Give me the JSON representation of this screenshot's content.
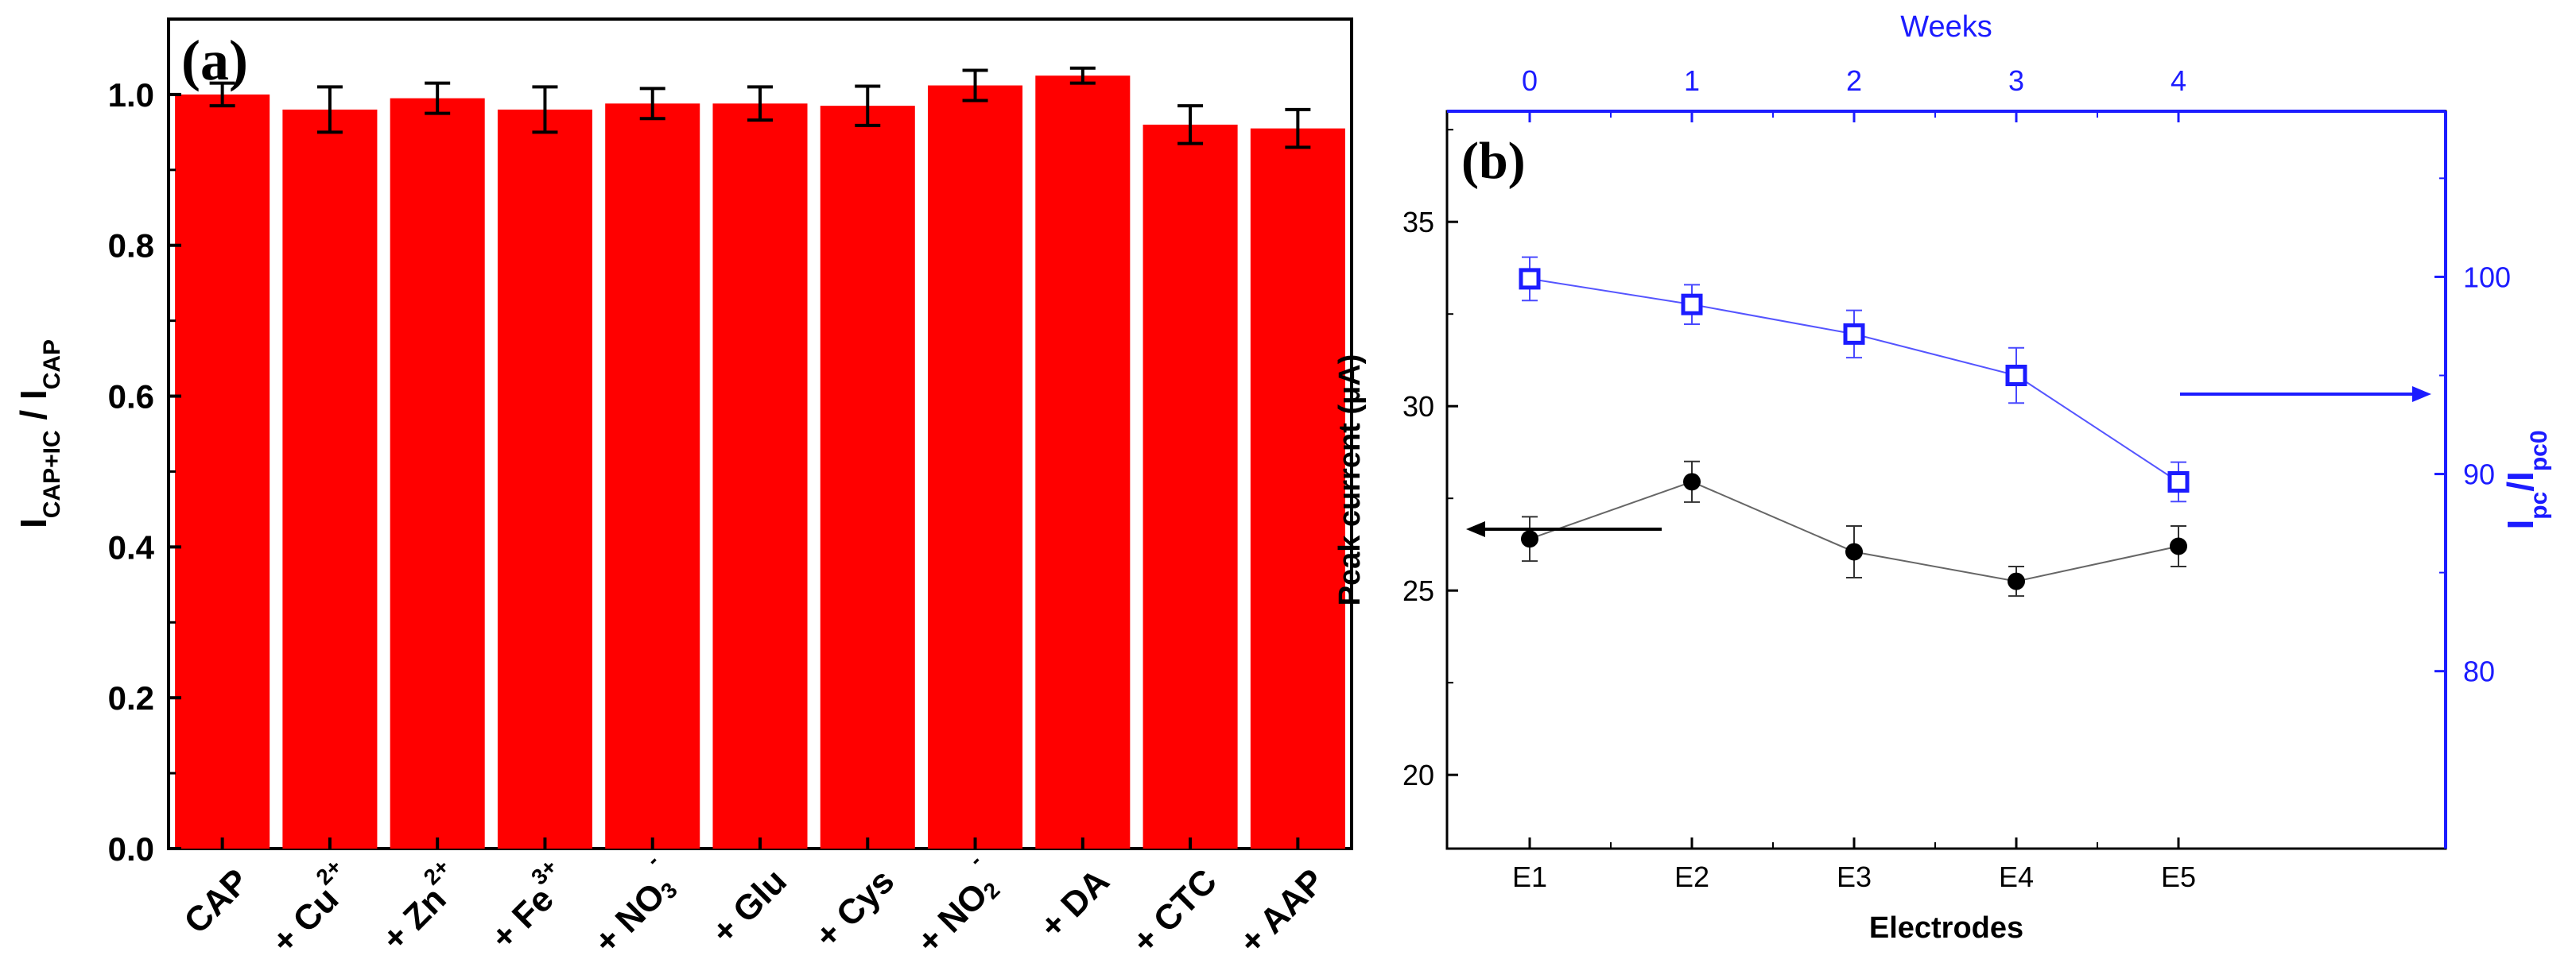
{
  "chart_data": [
    {
      "panel": "(a)",
      "type": "bar",
      "categories": [
        {
          "base": "CAP",
          "sup": "",
          "sub": ""
        },
        {
          "base": "+ Cu",
          "sup": "2+",
          "sub": ""
        },
        {
          "base": "+ Zn",
          "sup": "2+",
          "sub": ""
        },
        {
          "base": "+ Fe",
          "sup": "3+",
          "sub": ""
        },
        {
          "base": "+ NO",
          "sup": "-",
          "sub": "3"
        },
        {
          "base": "+ Glu",
          "sup": "",
          "sub": ""
        },
        {
          "base": "+ Cys",
          "sup": "",
          "sub": ""
        },
        {
          "base": "+ NO",
          "sup": "-",
          "sub": "2"
        },
        {
          "base": "+ DA",
          "sup": "",
          "sub": ""
        },
        {
          "base": "+ CTC",
          "sup": "",
          "sub": ""
        },
        {
          "base": "+ AAP",
          "sup": "",
          "sub": ""
        }
      ],
      "values": [
        1.0,
        0.98,
        0.995,
        0.98,
        0.988,
        0.988,
        0.985,
        1.012,
        1.025,
        0.96,
        0.955
      ],
      "errors": [
        0.015,
        0.03,
        0.02,
        0.03,
        0.02,
        0.022,
        0.026,
        0.02,
        0.01,
        0.025,
        0.025
      ],
      "ylabel": {
        "main": "I",
        "sub1": "CAP+IC",
        "mid": " / I",
        "sub2": "CAP"
      },
      "ylim": [
        0.0,
        1.1
      ],
      "yticks": [
        "0.0",
        "0.2",
        "0.4",
        "0.6",
        "0.8",
        "1.0"
      ],
      "bar_color": "#ff0000",
      "error_color": "#000000"
    },
    {
      "panel": "(b)",
      "type": "scatter",
      "x_categories": [
        "E1",
        "E2",
        "E3",
        "E4",
        "E5"
      ],
      "xlabel": "Electrodes",
      "top_xlabel": "Weeks",
      "top_xticks": [
        "0",
        "1",
        "2",
        "3",
        "4"
      ],
      "left_ylabel": "Peak current (μA)",
      "left_ylim": [
        18,
        38
      ],
      "left_yticks": [
        "20",
        "25",
        "30",
        "35"
      ],
      "right_ylabel": {
        "main": "I",
        "sub1": "pc",
        "mid": "/I",
        "sub2": "pc0"
      },
      "right_ylim": [
        71,
        108.4
      ],
      "right_yticks": [
        "80",
        "90",
        "100"
      ],
      "series": [
        {
          "name": "Peak current",
          "axis": "left",
          "values": [
            26.4,
            27.95,
            26.05,
            25.25,
            26.2
          ],
          "errors": [
            0.6,
            0.55,
            0.7,
            0.4,
            0.55
          ],
          "color": "#000000",
          "marker": "filled-circle"
        },
        {
          "name": "Ipc/Ipc0",
          "axis": "right",
          "values": [
            99.9,
            98.6,
            97.1,
            95.0,
            89.6
          ],
          "errors": [
            1.1,
            1.0,
            1.2,
            1.4,
            1.0
          ],
          "color": "#1c1cff",
          "marker": "open-square"
        }
      ],
      "left_axis_color": "#000000",
      "right_axis_color": "#1c1cff"
    }
  ]
}
